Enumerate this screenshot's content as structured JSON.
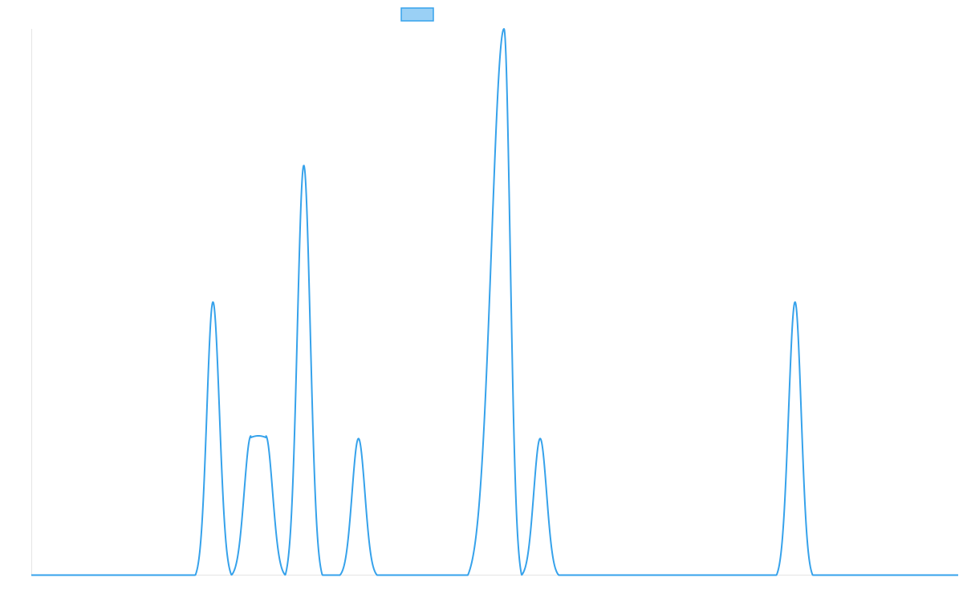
{
  "colors": {
    "line": "#36a2eb",
    "legend_fill": "#9ad0f5",
    "axis": "#e5e5e5",
    "background": "#ffffff"
  },
  "chart_data": {
    "type": "line",
    "legend_position": "top",
    "grid": false,
    "title": "",
    "xlabel": "",
    "ylabel": "",
    "xlim": [
      0,
      100
    ],
    "ylim": [
      0,
      4
    ],
    "series": [
      {
        "label": "",
        "peaks": [
          {
            "center": 19.6,
            "height": 2.0,
            "start": 17.7,
            "end": 21.6,
            "plateau": 0
          },
          {
            "center": 24.5,
            "height": 1.02,
            "start": 21.6,
            "end": 27.4,
            "plateau": 1.6
          },
          {
            "center": 29.4,
            "height": 3.0,
            "start": 27.4,
            "end": 31.4,
            "plateau": 0
          },
          {
            "center": 35.3,
            "height": 1.0,
            "start": 33.3,
            "end": 37.3,
            "plateau": 0
          },
          {
            "center": 51.0,
            "height": 4.0,
            "start": 47.1,
            "end": 52.9,
            "plateau": 0
          },
          {
            "center": 54.9,
            "height": 1.0,
            "start": 52.9,
            "end": 56.9,
            "plateau": 0
          },
          {
            "center": 82.4,
            "height": 2.0,
            "start": 80.4,
            "end": 84.3,
            "plateau": 0
          }
        ]
      }
    ]
  }
}
